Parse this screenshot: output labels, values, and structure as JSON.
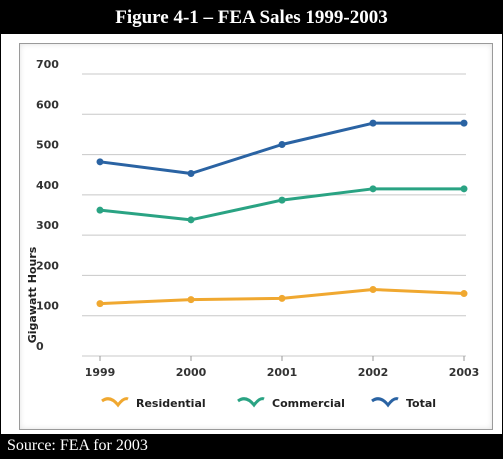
{
  "title": "Figure 4-1 – FEA Sales 1999-2003",
  "source": "Source: FEA for 2003",
  "chart_data": {
    "type": "line",
    "x": [
      "1999",
      "2000",
      "2001",
      "2002",
      "2003"
    ],
    "ylabel": "Gigawatt Hours",
    "xlabel": "",
    "ylim": [
      0,
      700
    ],
    "yticks": [
      "0",
      "100",
      "200",
      "300",
      "400",
      "500",
      "600",
      "700"
    ],
    "grid": true,
    "legend_position": "bottom",
    "series": [
      {
        "name": "Residential",
        "color": "#f0a830",
        "values": [
          130,
          140,
          143,
          165,
          155
        ]
      },
      {
        "name": "Commercial",
        "color": "#2aa383",
        "values": [
          362,
          338,
          387,
          415,
          415
        ]
      },
      {
        "name": "Total",
        "color": "#2a63a3",
        "values": [
          482,
          453,
          525,
          578,
          578
        ]
      }
    ]
  }
}
